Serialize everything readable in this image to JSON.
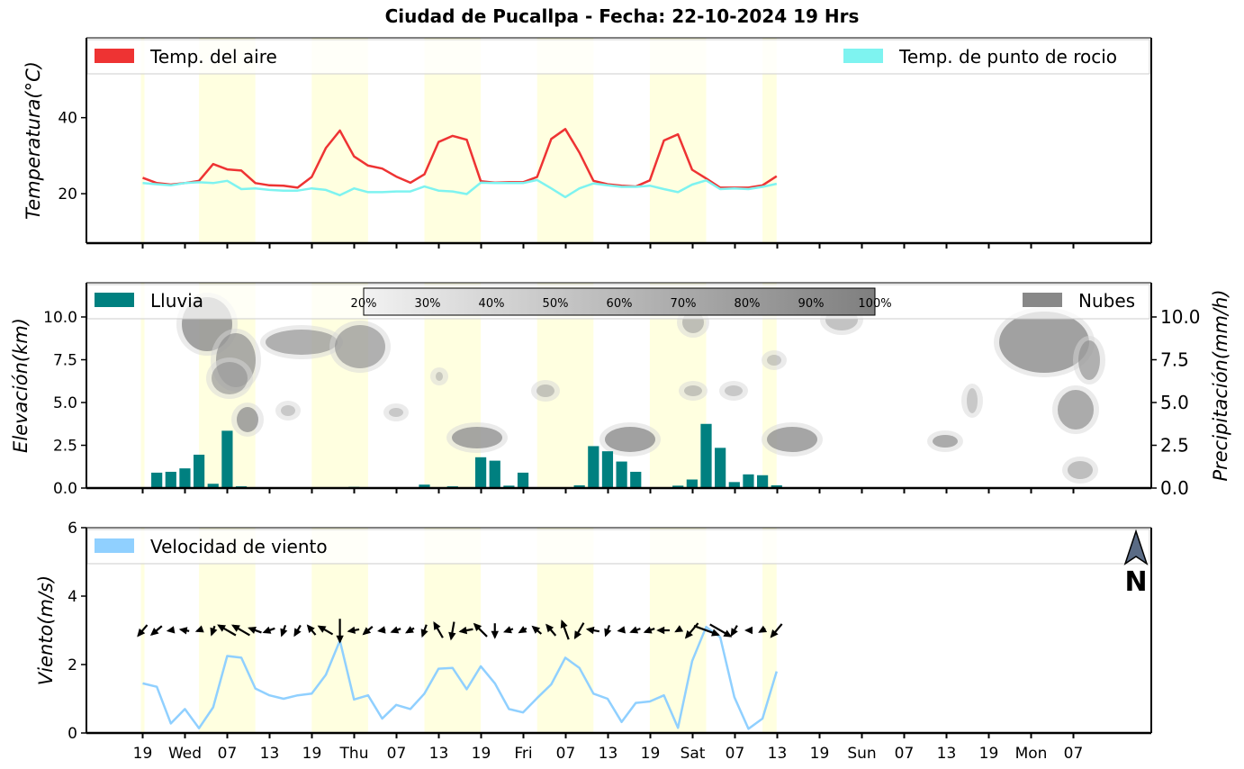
{
  "title": "Ciudad de Pucallpa   -   Fecha: 22-10-2024 19 Hrs",
  "colors": {
    "air": "#ee3333",
    "dew": "#7ef3f0",
    "rain": "#008080",
    "clouds": "#888888",
    "wind": "#90d0ff",
    "daylight": "#ffffe0"
  },
  "x_ticks": [
    "19",
    "Wed",
    "07",
    "13",
    "19",
    "Thu",
    "07",
    "13",
    "19",
    "Fri",
    "07",
    "13",
    "19",
    "Sat",
    "07",
    "13",
    "19",
    "Sun",
    "07",
    "13",
    "19",
    "Mon",
    "07"
  ],
  "chart_data": [
    {
      "type": "line",
      "ylabel": "Temperatura(°C)",
      "ylim": [
        7,
        61
      ],
      "yticks": [
        20,
        40
      ],
      "legend": [
        "Temp. del aire",
        "Temp. de punto de rocio"
      ],
      "x_step_hours": 3,
      "series": [
        {
          "name": "Temp. del aire",
          "values": [
            24.2,
            22.8,
            22.4,
            22.8,
            23.4,
            27.8,
            26.4,
            26.1,
            22.8,
            22.2,
            22.1,
            21.6,
            24.4,
            32.0,
            36.6,
            29.8,
            27.4,
            26.6,
            24.5,
            22.9,
            25.1,
            33.6,
            35.2,
            34.2,
            23.3,
            22.9,
            23.0,
            23.0,
            24.4,
            34.4,
            37.0,
            30.8,
            23.4,
            22.5,
            22.1,
            21.9,
            23.5,
            34.0,
            35.6,
            26.3,
            24.0,
            21.6,
            21.6,
            21.6,
            22.2,
            24.6
          ]
        },
        {
          "name": "Temp. de punto de rocio",
          "values": [
            22.8,
            22.5,
            22.2,
            22.8,
            23.0,
            22.8,
            23.4,
            21.2,
            21.4,
            21.0,
            20.8,
            20.8,
            21.4,
            21.0,
            19.6,
            21.4,
            20.4,
            20.4,
            20.6,
            20.6,
            21.9,
            20.8,
            20.6,
            19.9,
            22.9,
            22.8,
            22.8,
            22.8,
            23.6,
            21.4,
            19.1,
            21.4,
            22.7,
            22.2,
            21.8,
            21.8,
            22.1,
            21.2,
            20.4,
            22.4,
            23.5,
            21.2,
            21.4,
            21.2,
            21.8,
            22.6
          ]
        }
      ]
    },
    {
      "type": "bar",
      "ylabel": "Elevación(km)",
      "ylabel_right": "Precipitación(mm/h)",
      "ylim": [
        0,
        12
      ],
      "yticks": [
        0.0,
        2.5,
        5.0,
        7.5,
        10.0
      ],
      "legend": [
        "Lluvia",
        "Nubes"
      ],
      "colorbar": [
        "20%",
        "30%",
        "40%",
        "50%",
        "60%",
        "70%",
        "80%",
        "90%",
        "100%"
      ],
      "series": [
        {
          "name": "Lluvia",
          "values": [
            0,
            0.9,
            0.95,
            1.15,
            1.95,
            0.25,
            3.35,
            0.1,
            0,
            0,
            0,
            0,
            0,
            0,
            0,
            0.07,
            0.04,
            0.04,
            0.05,
            0.05,
            0.2,
            0.03,
            0.1,
            0.04,
            1.8,
            1.6,
            0.14,
            0.9,
            0,
            0,
            0.04,
            0.16,
            2.45,
            2.15,
            1.55,
            0.95,
            0.05,
            0,
            0.14,
            0.5,
            3.75,
            2.35,
            0.35,
            0.8,
            0.75,
            0.16
          ]
        }
      ]
    },
    {
      "type": "line",
      "ylabel": "Viento(m/s)",
      "ylim": [
        0,
        6
      ],
      "yticks": [
        0,
        2,
        4,
        6
      ],
      "legend": [
        "Velocidad de viento"
      ],
      "north_label": "N",
      "series": [
        {
          "name": "Velocidad de viento",
          "values": [
            1.45,
            1.35,
            0.28,
            0.7,
            0.14,
            0.75,
            2.25,
            2.2,
            1.3,
            1.1,
            1.0,
            1.1,
            1.15,
            1.7,
            2.7,
            0.98,
            1.1,
            0.42,
            0.82,
            0.7,
            1.15,
            1.88,
            1.9,
            1.28,
            1.95,
            1.45,
            0.7,
            0.6,
            1.02,
            1.42,
            2.2,
            1.9,
            1.15,
            1.0,
            0.32,
            0.88,
            0.92,
            1.1,
            0.15,
            2.1,
            3.1,
            2.8,
            1.05,
            0.12,
            0.42,
            1.8
          ]
        },
        {
          "name": "direction_deg",
          "values": [
            220,
            230,
            260,
            280,
            250,
            200,
            300,
            300,
            290,
            250,
            200,
            210,
            320,
            300,
            180,
            260,
            230,
            260,
            250,
            240,
            200,
            330,
            190,
            260,
            315,
            180,
            250,
            240,
            310,
            320,
            340,
            210,
            280,
            200,
            260,
            250,
            250,
            270,
            240,
            220,
            110,
            120,
            210,
            270,
            240,
            220
          ]
        }
      ]
    }
  ]
}
